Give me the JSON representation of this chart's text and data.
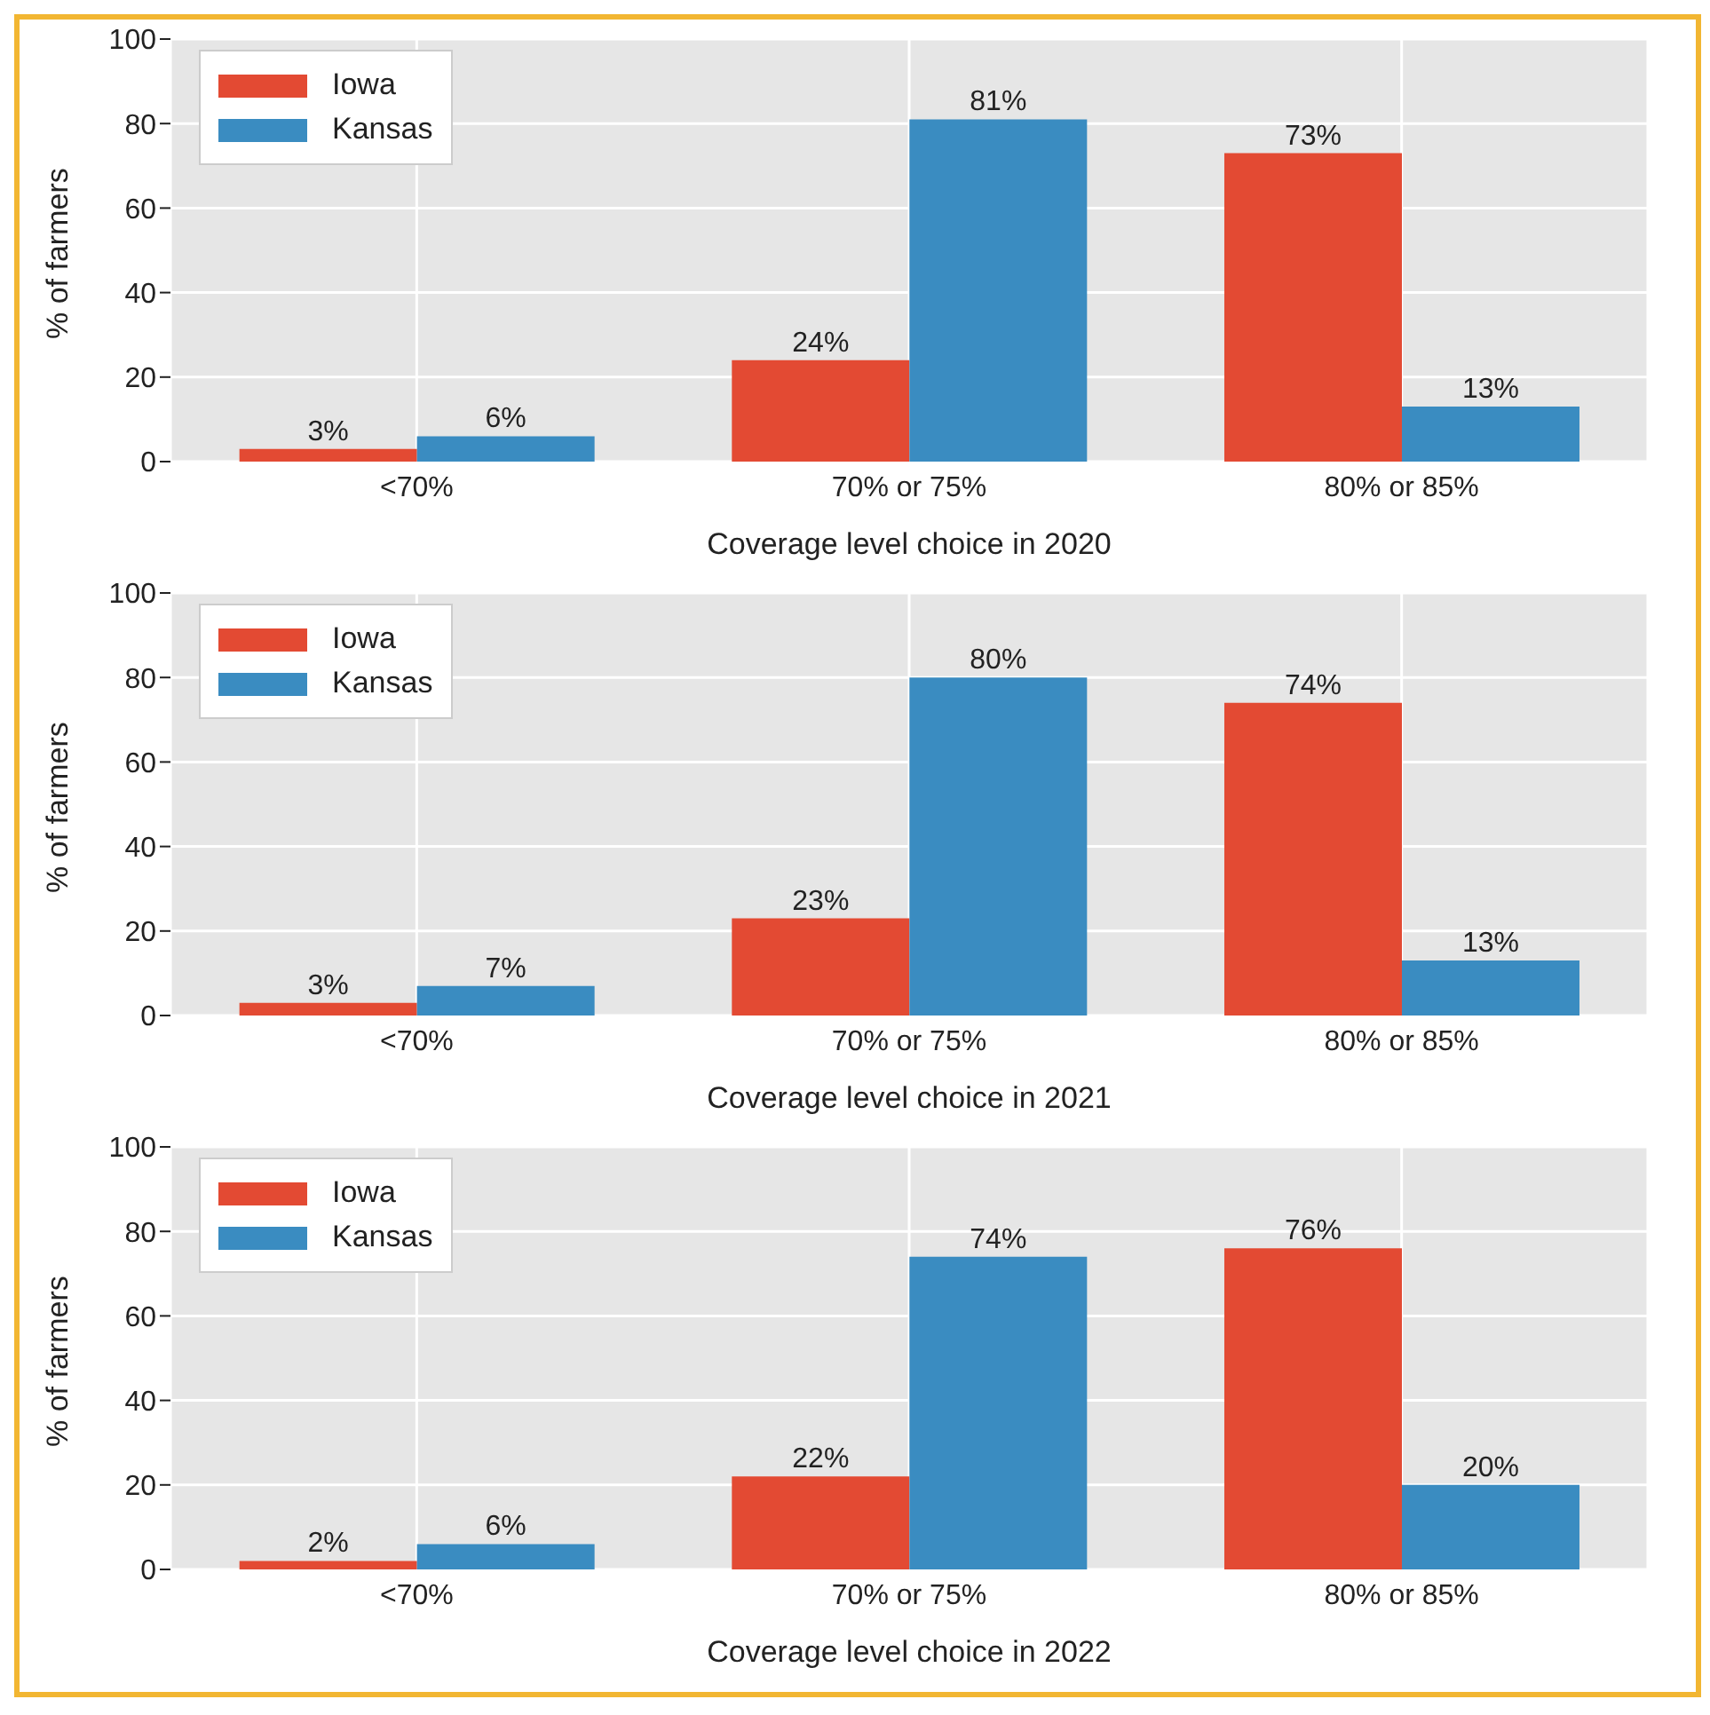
{
  "chart_data": [
    {
      "type": "bar",
      "xlabel": "Coverage level choice in 2020",
      "ylabel": "% of farmers",
      "categories": [
        "<70%",
        "70% or 75%",
        "80% or 85%"
      ],
      "ylim": [
        0,
        100
      ],
      "yticks": [
        0,
        20,
        40,
        60,
        80,
        100
      ],
      "grid": true,
      "legend": "top left",
      "series": [
        {
          "name": "Iowa",
          "color": "#e34a33",
          "values": [
            3,
            24,
            73
          ],
          "value_labels": [
            "3%",
            "24%",
            "73%"
          ]
        },
        {
          "name": "Kansas",
          "color": "#3a8cc1",
          "values": [
            6,
            81,
            13
          ],
          "value_labels": [
            "6%",
            "81%",
            "13%"
          ]
        }
      ]
    },
    {
      "type": "bar",
      "xlabel": "Coverage level choice in 2021",
      "ylabel": "% of farmers",
      "categories": [
        "<70%",
        "70% or 75%",
        "80% or 85%"
      ],
      "ylim": [
        0,
        100
      ],
      "yticks": [
        0,
        20,
        40,
        60,
        80,
        100
      ],
      "grid": true,
      "legend": "top left",
      "series": [
        {
          "name": "Iowa",
          "color": "#e34a33",
          "values": [
            3,
            23,
            74
          ],
          "value_labels": [
            "3%",
            "23%",
            "74%"
          ]
        },
        {
          "name": "Kansas",
          "color": "#3a8cc1",
          "values": [
            7,
            80,
            13
          ],
          "value_labels": [
            "7%",
            "80%",
            "13%"
          ]
        }
      ]
    },
    {
      "type": "bar",
      "xlabel": "Coverage level choice in 2022",
      "ylabel": "% of farmers",
      "categories": [
        "<70%",
        "70% or 75%",
        "80% or 85%"
      ],
      "ylim": [
        0,
        100
      ],
      "yticks": [
        0,
        20,
        40,
        60,
        80,
        100
      ],
      "grid": true,
      "legend": "top left",
      "series": [
        {
          "name": "Iowa",
          "color": "#e34a33",
          "values": [
            2,
            22,
            76
          ],
          "value_labels": [
            "2%",
            "22%",
            "76%"
          ]
        },
        {
          "name": "Kansas",
          "color": "#3a8cc1",
          "values": [
            6,
            74,
            20
          ],
          "value_labels": [
            "6%",
            "74%",
            "20%"
          ]
        }
      ]
    }
  ]
}
